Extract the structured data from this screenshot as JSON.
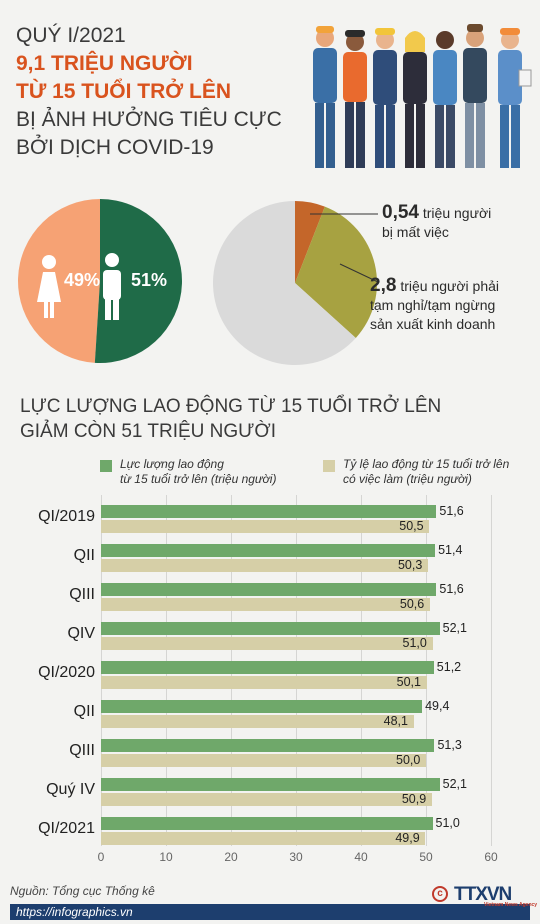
{
  "header": {
    "line1": "QUÝ I/2021",
    "line2": "9,1 TRIỆU NGƯỜI",
    "line3": "TỪ 15 TUỔI TRỞ LÊN",
    "line4": "BỊ ẢNH HƯỞNG TIÊU CỰC",
    "line5": "BỞI DỊCH COVID-19"
  },
  "gender_pie": {
    "female_pct": "49%",
    "male_pct": "51%",
    "female_value": 49,
    "male_value": 51,
    "female_color": "#f6a274",
    "male_color": "#1f6b48"
  },
  "impact_pie": {
    "total": 9.1,
    "slices": [
      {
        "value": 0.54,
        "color": "#c4662a"
      },
      {
        "value": 2.8,
        "color": "#a7a241"
      },
      {
        "value": 5.76,
        "color": "#dadada"
      }
    ],
    "ann1_value": "0,54",
    "ann1_text_a": "triệu người",
    "ann1_text_b": "bị mất việc",
    "ann2_value": "2,8",
    "ann2_text_a": "triệu người phải",
    "ann2_text_b": "tạm nghỉ/tạm ngừng",
    "ann2_text_c": "sản xuất kinh doanh"
  },
  "section_title": {
    "line1": "LỰC LƯỢNG LAO ĐỘNG TỪ 15 TUỔI TRỞ LÊN",
    "line2": "GIẢM CÒN 51 TRIỆU NGƯỜI"
  },
  "chart_data": {
    "type": "bar",
    "orientation": "horizontal",
    "categories": [
      "QI/2019",
      "QII",
      "QIII",
      "QIV",
      "QI/2020",
      "QII",
      "QIII",
      "Quý IV",
      "QI/2021"
    ],
    "series": [
      {
        "name": "Lực lượng lao động từ 15 tuổi trở lên (triệu người)",
        "values": [
          51.6,
          51.4,
          51.6,
          52.1,
          51.2,
          49.4,
          51.3,
          52.1,
          51.0
        ],
        "labels": [
          "51,6",
          "51,4",
          "51,6",
          "52,1",
          "51,2",
          "49,4",
          "51,3",
          "52,1",
          "51,0"
        ],
        "color": "#6fa86a"
      },
      {
        "name": "Tỷ lệ lao động từ 15 tuổi trở lên có việc làm (triệu người)",
        "values": [
          50.5,
          50.3,
          50.6,
          51.0,
          50.1,
          48.1,
          50.0,
          50.9,
          49.9
        ],
        "labels": [
          "50,5",
          "50,3",
          "50,6",
          "51,0",
          "50,1",
          "48,1",
          "50,0",
          "50,9",
          "49,9"
        ],
        "color": "#d6cfa7"
      }
    ],
    "xlim": [
      0,
      60
    ],
    "xticks": [
      "0",
      "10",
      "20",
      "30",
      "40",
      "50",
      "60"
    ],
    "legend_1a": "Lực lượng lao động",
    "legend_1b": "từ 15 tuổi trở lên (triệu người)",
    "legend_2a": "Tỷ lệ lao động từ 15 tuổi trở lên",
    "legend_2b": "có việc làm (triệu người)",
    "grid": true,
    "legend_position": "top"
  },
  "footer": {
    "source": "Nguồn: Tổng cục Thống kê",
    "url": "https://infographics.vn",
    "logo": "TTXVN",
    "logo_sub": "Vietnam News Agency"
  }
}
